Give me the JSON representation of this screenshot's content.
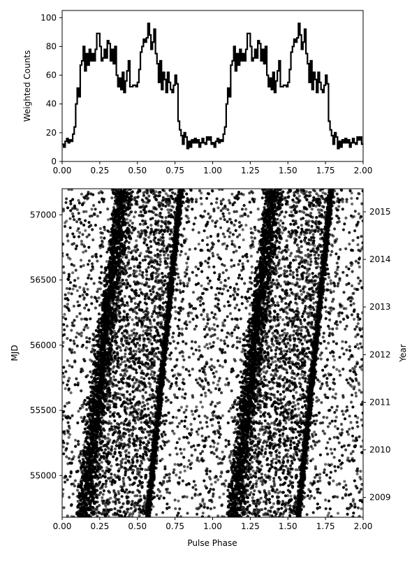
{
  "chart_data": [
    {
      "type": "line",
      "style": "step",
      "title": "",
      "xlabel": "",
      "ylabel": "Weighted Counts",
      "xlim": [
        0.0,
        2.0
      ],
      "ylim": [
        0,
        105
      ],
      "xticks": [
        "0.00",
        "0.25",
        "0.50",
        "0.75",
        "1.00",
        "1.25",
        "1.50",
        "1.75",
        "2.00"
      ],
      "yticks": [
        "0",
        "20",
        "40",
        "60",
        "80",
        "100"
      ],
      "grid": false,
      "bin_width": 0.01,
      "series": [
        {
          "x": [
            0.0,
            0.01,
            0.02,
            0.03,
            0.04,
            0.05,
            0.06,
            0.07,
            0.08,
            0.09,
            0.1,
            0.11,
            0.12,
            0.13,
            0.14,
            0.15,
            0.16,
            0.17,
            0.18,
            0.19,
            0.2,
            0.21,
            0.22,
            0.23,
            0.24,
            0.25,
            0.26,
            0.27,
            0.28,
            0.29,
            0.3,
            0.31,
            0.32,
            0.33,
            0.34,
            0.35,
            0.36,
            0.37,
            0.38,
            0.39,
            0.4,
            0.41,
            0.42,
            0.43,
            0.44,
            0.45,
            0.46,
            0.47,
            0.48,
            0.49,
            0.5,
            0.51,
            0.52,
            0.53,
            0.54,
            0.55,
            0.56,
            0.57,
            0.58,
            0.59,
            0.6,
            0.61,
            0.62,
            0.63,
            0.64,
            0.65,
            0.66,
            0.67,
            0.68,
            0.69,
            0.7,
            0.71,
            0.72,
            0.73,
            0.74,
            0.75,
            0.76,
            0.77,
            0.78,
            0.79,
            0.8,
            0.81,
            0.82,
            0.83,
            0.84,
            0.85,
            0.86,
            0.87,
            0.88,
            0.89,
            0.9,
            0.91,
            0.92,
            0.93,
            0.94,
            0.95,
            0.96,
            0.97,
            0.98,
            0.99,
            1.0,
            1.01,
            1.02,
            1.03,
            1.04,
            1.05,
            1.06,
            1.07,
            1.08,
            1.09,
            1.1,
            1.11,
            1.12,
            1.13,
            1.14,
            1.15,
            1.16,
            1.17,
            1.18,
            1.19,
            1.2,
            1.21,
            1.22,
            1.23,
            1.24,
            1.25,
            1.26,
            1.27,
            1.28,
            1.29,
            1.3,
            1.31,
            1.32,
            1.33,
            1.34,
            1.35,
            1.36,
            1.37,
            1.38,
            1.39,
            1.4,
            1.41,
            1.42,
            1.43,
            1.44,
            1.45,
            1.46,
            1.47,
            1.48,
            1.49,
            1.5,
            1.51,
            1.52,
            1.53,
            1.54,
            1.55,
            1.56,
            1.57,
            1.58,
            1.59,
            1.6,
            1.61,
            1.62,
            1.63,
            1.64,
            1.65,
            1.66,
            1.67,
            1.68,
            1.69,
            1.7,
            1.71,
            1.72,
            1.73,
            1.74,
            1.75,
            1.76,
            1.77,
            1.78,
            1.79,
            1.8,
            1.81,
            1.82,
            1.83,
            1.84,
            1.85,
            1.86,
            1.87,
            1.88,
            1.89,
            1.9,
            1.91,
            1.92,
            1.93,
            1.94,
            1.95,
            1.96,
            1.97,
            1.98,
            1.99
          ],
          "values": [
            12,
            10,
            14,
            16,
            13,
            15,
            14,
            19,
            24,
            40,
            51,
            45,
            67,
            70,
            80,
            63,
            75,
            67,
            78,
            70,
            75,
            70,
            78,
            89,
            89,
            80,
            70,
            72,
            78,
            72,
            84,
            82,
            70,
            78,
            68,
            80,
            60,
            52,
            58,
            50,
            62,
            48,
            56,
            63,
            70,
            52,
            52,
            53,
            53,
            52,
            55,
            64,
            76,
            80,
            85,
            83,
            86,
            96,
            88,
            78,
            83,
            92,
            75,
            68,
            55,
            70,
            50,
            62,
            57,
            48,
            62,
            55,
            50,
            48,
            53,
            60,
            54,
            28,
            22,
            18,
            12,
            20,
            17,
            9,
            14,
            10,
            15,
            13,
            16,
            13,
            15,
            10,
            13,
            16,
            13,
            12,
            17,
            15,
            17,
            12,
            13,
            10,
            14,
            16,
            13,
            15,
            14,
            19,
            24,
            40,
            51,
            45,
            67,
            70,
            80,
            63,
            75,
            67,
            78,
            70,
            75,
            70,
            78,
            89,
            89,
            80,
            70,
            72,
            78,
            72,
            84,
            82,
            70,
            78,
            68,
            80,
            60,
            52,
            58,
            50,
            62,
            48,
            56,
            63,
            70,
            52,
            52,
            53,
            53,
            52,
            55,
            64,
            76,
            80,
            85,
            83,
            86,
            96,
            88,
            78,
            83,
            92,
            75,
            68,
            55,
            70,
            50,
            62,
            57,
            48,
            62,
            55,
            50,
            48,
            53,
            60,
            54,
            28,
            22,
            18,
            12,
            20,
            17,
            9,
            14,
            10,
            15,
            13,
            16,
            13,
            15,
            10,
            13,
            16,
            13,
            12,
            17,
            15,
            17,
            12
          ]
        }
      ]
    },
    {
      "type": "scatter",
      "title": "",
      "xlabel": "Pulse Phase",
      "ylabel": "MJD",
      "y2label": "Year",
      "xlim": [
        0.0,
        2.0
      ],
      "ylim": [
        54680,
        57200
      ],
      "xticks": [
        "0.00",
        "0.25",
        "0.50",
        "0.75",
        "1.00",
        "1.25",
        "1.50",
        "1.75",
        "2.00"
      ],
      "yticks": [
        "55000",
        "55500",
        "56000",
        "56500",
        "57000"
      ],
      "y2ticks": [
        "2009",
        "2010",
        "2011",
        "2012",
        "2013",
        "2014",
        "2015"
      ],
      "y2_mjd": [
        54832,
        55197,
        55562,
        55927,
        56293,
        56658,
        57023
      ],
      "grid": false,
      "point_color": "#000000",
      "description_of_features": "Dense photon events forming two slanted stripes per phase cycle (around phase 0.1–0.35 and 0.55–0.65 at MJD 54700, drifting to ~0.35–0.45 and ~0.75 by MJD 57200), repeated at phase+1.",
      "stripe_tracks": [
        {
          "name": "peak 1",
          "mjd": [
            54700,
            57200
          ],
          "phase": [
            0.13,
            0.39
          ]
        },
        {
          "name": "peak 2",
          "mjd": [
            54700,
            57200
          ],
          "phase": [
            0.57,
            0.79
          ]
        }
      ]
    }
  ]
}
